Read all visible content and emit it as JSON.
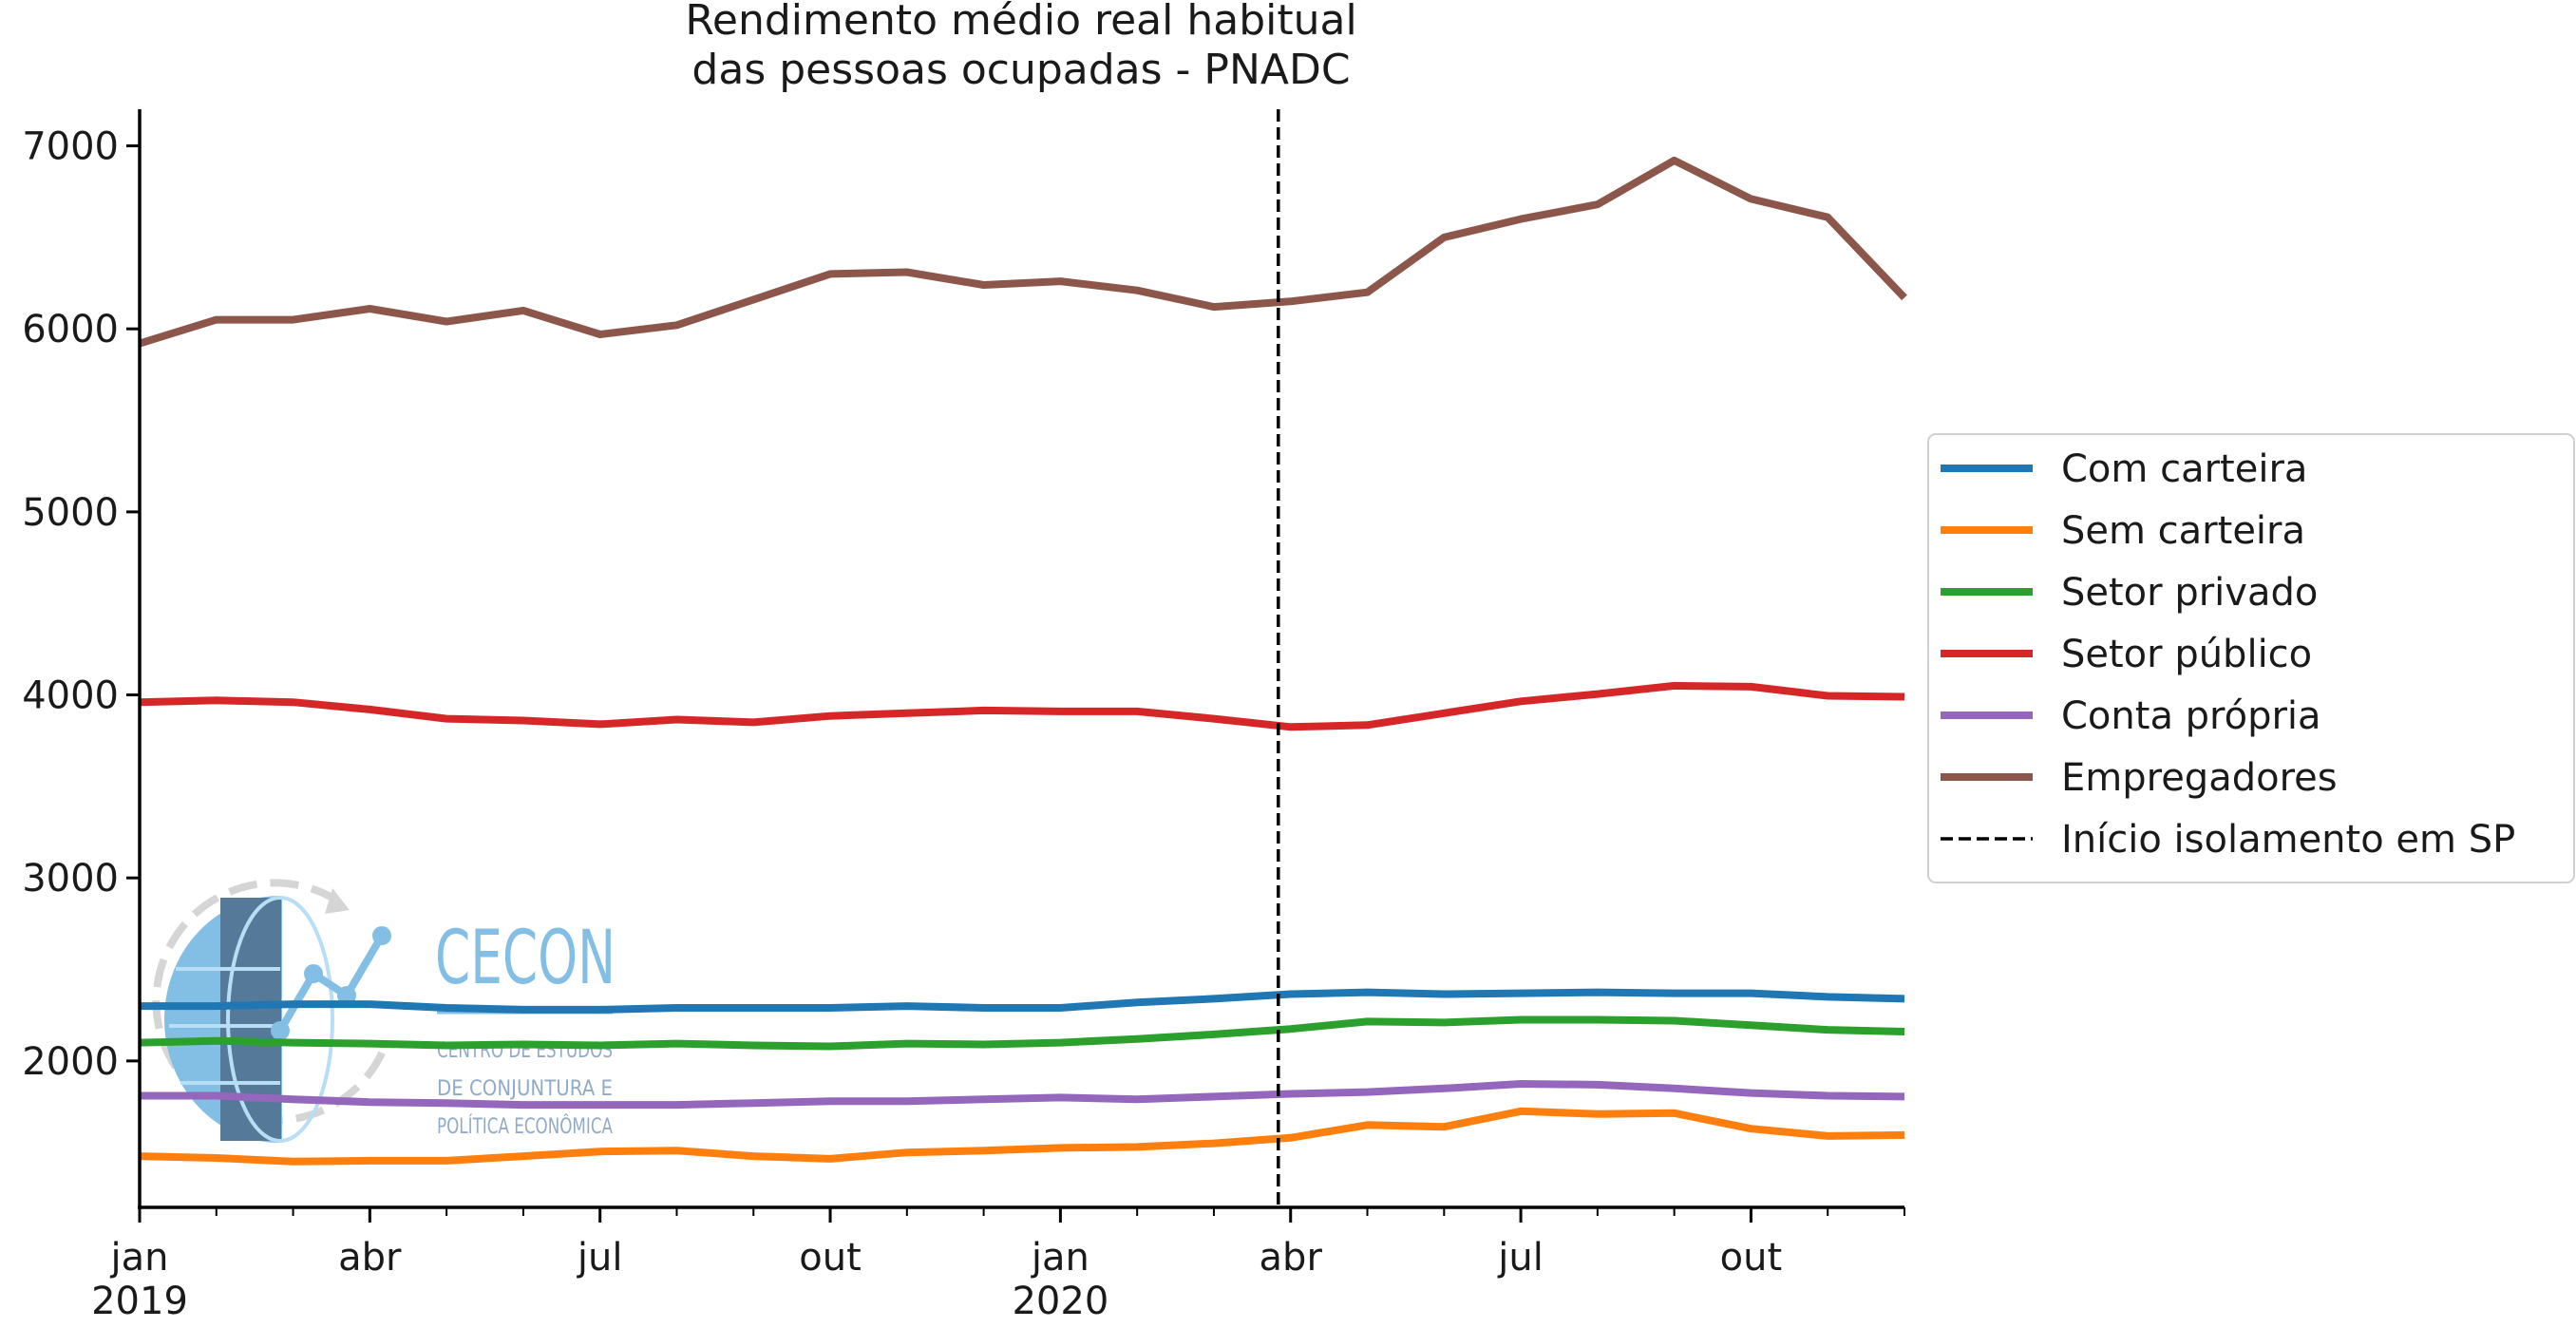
{
  "chart_data": {
    "type": "line",
    "title_lines": [
      "Rendimento médio real habitual",
      "das pessoas ocupadas - PNADC"
    ],
    "x": [
      "2019-01",
      "2019-02",
      "2019-03",
      "2019-04",
      "2019-05",
      "2019-06",
      "2019-07",
      "2019-08",
      "2019-09",
      "2019-10",
      "2019-11",
      "2019-12",
      "2020-01",
      "2020-02",
      "2020-03",
      "2020-04",
      "2020-05",
      "2020-06",
      "2020-07",
      "2020-08",
      "2020-09",
      "2020-10",
      "2020-11",
      "2020-12"
    ],
    "x_ticks": [
      {
        "x": "2019-01",
        "label": "jan",
        "year": "2019"
      },
      {
        "x": "2019-04",
        "label": "abr",
        "year": ""
      },
      {
        "x": "2019-07",
        "label": "jul",
        "year": ""
      },
      {
        "x": "2019-10",
        "label": "out",
        "year": ""
      },
      {
        "x": "2020-01",
        "label": "jan",
        "year": "2020"
      },
      {
        "x": "2020-04",
        "label": "abr",
        "year": ""
      },
      {
        "x": "2020-07",
        "label": "jul",
        "year": ""
      },
      {
        "x": "2020-10",
        "label": "out",
        "year": ""
      }
    ],
    "y_ticks": [
      2000,
      3000,
      4000,
      5000,
      6000,
      7000
    ],
    "ylim": [
      1200,
      7200
    ],
    "series": [
      {
        "name": "Com carteira",
        "color": "#1f77b4",
        "values": [
          2300,
          2300,
          2310,
          2310,
          2290,
          2280,
          2280,
          2290,
          2290,
          2290,
          2300,
          2290,
          2290,
          2320,
          2340,
          2365,
          2375,
          2365,
          2370,
          2375,
          2370,
          2370,
          2350,
          2340
        ]
      },
      {
        "name": "Sem carteira",
        "color": "#ff7f0e",
        "values": [
          1480,
          1470,
          1450,
          1455,
          1455,
          1480,
          1505,
          1510,
          1480,
          1465,
          1500,
          1510,
          1525,
          1530,
          1550,
          1580,
          1650,
          1640,
          1725,
          1710,
          1715,
          1630,
          1590,
          1595
        ]
      },
      {
        "name": "Setor privado",
        "color": "#2ca02c",
        "values": [
          2100,
          2110,
          2100,
          2095,
          2085,
          2090,
          2085,
          2095,
          2085,
          2080,
          2095,
          2090,
          2100,
          2120,
          2145,
          2175,
          2215,
          2210,
          2225,
          2225,
          2220,
          2195,
          2170,
          2160
        ]
      },
      {
        "name": "Setor público",
        "color": "#d62728",
        "values": [
          3960,
          3970,
          3960,
          3920,
          3870,
          3860,
          3840,
          3865,
          3850,
          3885,
          3900,
          3915,
          3910,
          3910,
          3870,
          3825,
          3835,
          3900,
          3965,
          4005,
          4050,
          4045,
          3995,
          3990
        ]
      },
      {
        "name": "Conta própria",
        "color": "#9467bd",
        "values": [
          1810,
          1810,
          1790,
          1775,
          1770,
          1760,
          1760,
          1760,
          1770,
          1780,
          1780,
          1790,
          1800,
          1790,
          1805,
          1820,
          1830,
          1850,
          1875,
          1870,
          1850,
          1825,
          1810,
          1805
        ]
      },
      {
        "name": "Empregadores",
        "color": "#8c564b",
        "values": [
          5920,
          6050,
          6050,
          6110,
          6040,
          6100,
          5970,
          6020,
          6160,
          6300,
          6310,
          6240,
          6260,
          6210,
          6120,
          6150,
          6200,
          6500,
          6600,
          6680,
          6920,
          6710,
          6610,
          6170
        ]
      }
    ],
    "vline": {
      "x": "2020-03",
      "offset_fraction": 0.84,
      "label": "Início isolamento em SP",
      "color": "#000000",
      "style": "dashed"
    },
    "legend_position": "center-right",
    "grid": false
  },
  "watermark": {
    "brand": "CECON",
    "subtitle_lines": [
      "CENTRO DE ESTUDOS",
      "DE CONJUNTURA E",
      "POLÍTICA ECONÔMICA"
    ],
    "color": "#5aa9dc"
  }
}
